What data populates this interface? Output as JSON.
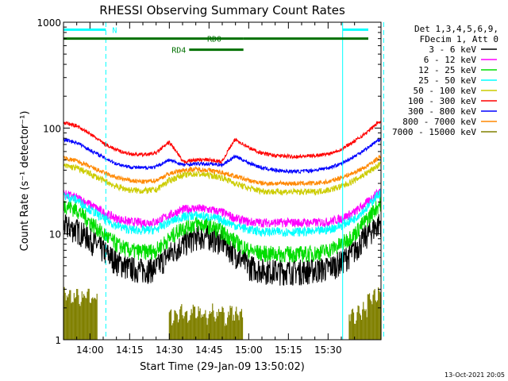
{
  "chart_data": {
    "type": "line",
    "title": "RHESSI Observing Summary Count Rates",
    "xlabel": "Start Time (29-Jan-09 13:50:02)",
    "ylabel": "Count Rate (s⁻¹ detector⁻¹)",
    "yscale": "log",
    "ylim": [
      1,
      1000
    ],
    "xlim_minutes": [
      0,
      120
    ],
    "x_ticks": [
      "14:00",
      "14:15",
      "14:30",
      "14:45",
      "15:00",
      "15:15",
      "15:30"
    ],
    "y_ticks": [
      "1",
      "10",
      "100",
      "1000"
    ],
    "grid": "none",
    "legend_position": "top-right",
    "legend_header": [
      "Det 1,3,4,5,6,9,",
      "FDecim 1, Att 0"
    ],
    "series": [
      {
        "name": "3 - 6 keV",
        "color": "#000000",
        "x_minutes": [
          0,
          5,
          10,
          15,
          20,
          25,
          30,
          35,
          40,
          45,
          50,
          55,
          60,
          65,
          70,
          75,
          80,
          85,
          90,
          95,
          100,
          105,
          110,
          115,
          120
        ],
        "values": [
          12,
          11,
          9,
          7,
          5.5,
          4.8,
          4.6,
          4.8,
          6.5,
          8,
          9.5,
          9.5,
          8.5,
          6.5,
          5,
          4.6,
          4.5,
          4.5,
          4.5,
          4.6,
          4.8,
          5.5,
          7,
          10,
          13
        ]
      },
      {
        "name": "6 - 12 keV",
        "color": "#ff00ff",
        "x_minutes": [
          0,
          5,
          10,
          15,
          20,
          25,
          30,
          35,
          40,
          45,
          50,
          55,
          60,
          65,
          70,
          75,
          80,
          85,
          90,
          95,
          100,
          105,
          110,
          115,
          120
        ],
        "values": [
          24,
          22,
          19,
          16,
          14,
          13,
          12.8,
          13,
          15,
          17,
          17.5,
          17,
          16,
          14,
          13,
          12.8,
          12.8,
          12.8,
          12.8,
          12.8,
          13,
          14,
          16,
          20,
          26
        ]
      },
      {
        "name": "12 - 25 keV",
        "color": "#00dd00",
        "x_minutes": [
          0,
          5,
          10,
          15,
          20,
          25,
          30,
          35,
          40,
          45,
          50,
          55,
          60,
          65,
          70,
          75,
          80,
          85,
          90,
          95,
          100,
          105,
          110,
          115,
          120
        ],
        "values": [
          19,
          17,
          13,
          10,
          8,
          7,
          6.8,
          7,
          9,
          11.5,
          12.5,
          12,
          10.5,
          8.5,
          7,
          6.6,
          6.5,
          6.5,
          6.5,
          6.6,
          7,
          8,
          10,
          14,
          20
        ]
      },
      {
        "name": "25 - 50 keV",
        "color": "#00ffff",
        "x_minutes": [
          0,
          5,
          10,
          15,
          20,
          25,
          30,
          35,
          40,
          45,
          50,
          55,
          60,
          65,
          70,
          75,
          80,
          85,
          90,
          95,
          100,
          105,
          110,
          115,
          120
        ],
        "values": [
          23,
          21,
          17,
          14,
          12,
          11,
          10.8,
          11,
          13,
          14.5,
          15,
          14.5,
          13.5,
          12,
          11,
          10.5,
          10.5,
          10.5,
          10.5,
          10.5,
          11,
          12,
          14,
          18,
          25
        ]
      },
      {
        "name": "50 - 100 keV",
        "color": "#cccc00",
        "x_minutes": [
          0,
          5,
          10,
          15,
          20,
          25,
          30,
          35,
          40,
          45,
          50,
          55,
          60,
          65,
          70,
          75,
          80,
          85,
          90,
          95,
          100,
          105,
          110,
          115,
          120
        ],
        "values": [
          44,
          42,
          37,
          32,
          28,
          26,
          25.5,
          26,
          32,
          36,
          37,
          36,
          34,
          30,
          27,
          25.5,
          25,
          25,
          25,
          25,
          26,
          28,
          32,
          38,
          46
        ]
      },
      {
        "name": "100 - 300 keV",
        "color": "#ff0000",
        "x_minutes": [
          0,
          5,
          10,
          15,
          20,
          25,
          30,
          35,
          40,
          45,
          50,
          55,
          60,
          65,
          70,
          75,
          80,
          85,
          90,
          95,
          100,
          105,
          110,
          115,
          120
        ],
        "values": [
          112,
          105,
          88,
          72,
          62,
          57,
          56,
          58,
          73,
          48,
          50,
          50,
          48,
          78,
          65,
          58,
          55,
          54,
          54,
          55,
          57,
          63,
          75,
          92,
          118
        ]
      },
      {
        "name": "300 - 800 keV",
        "color": "#0000ff",
        "x_minutes": [
          0,
          5,
          10,
          15,
          20,
          25,
          30,
          35,
          40,
          45,
          50,
          55,
          60,
          65,
          70,
          75,
          80,
          85,
          90,
          95,
          100,
          105,
          110,
          115,
          120
        ],
        "values": [
          78,
          73,
          62,
          53,
          46,
          43,
          42,
          43,
          50,
          45,
          46,
          46,
          45,
          54,
          47,
          42,
          40,
          39,
          39,
          40,
          42,
          46,
          54,
          65,
          80
        ]
      },
      {
        "name": "800 - 7000 keV",
        "color": "#ff8800",
        "x_minutes": [
          0,
          5,
          10,
          15,
          20,
          25,
          30,
          35,
          40,
          45,
          50,
          55,
          60,
          65,
          70,
          75,
          80,
          85,
          90,
          95,
          100,
          105,
          110,
          115,
          120
        ],
        "values": [
          52,
          49,
          43,
          38,
          34,
          32,
          31,
          32,
          37,
          40,
          41,
          40,
          38,
          35,
          32,
          30,
          30,
          30,
          30,
          30,
          31,
          34,
          38,
          44,
          54
        ]
      },
      {
        "name": "7000 - 15000 keV",
        "color": "#808000",
        "x_minutes": [
          0,
          1,
          2,
          3,
          4,
          5,
          6,
          7,
          8,
          9,
          10,
          11,
          12,
          40,
          41,
          42,
          43,
          44,
          45,
          46,
          47,
          48,
          49,
          50,
          51,
          52,
          53,
          54,
          55,
          56,
          57,
          58,
          59,
          60,
          61,
          62,
          63,
          64,
          65,
          66,
          67,
          108,
          109,
          110,
          111,
          112,
          113,
          114,
          115,
          116,
          117,
          118,
          119,
          120
        ],
        "values": [
          2.9,
          2.5,
          2.8,
          2.2,
          2.6,
          2.9,
          2.1,
          2.7,
          2.4,
          2.8,
          2.3,
          2.6,
          2.5,
          1.8,
          1.5,
          1.9,
          1.6,
          2,
          1.7,
          1.9,
          1.5,
          1.8,
          2,
          1.6,
          1.9,
          1.7,
          1.8,
          1.5,
          1.9,
          2,
          1.6,
          1.8,
          1.7,
          1.9,
          1.5,
          1.8,
          2,
          1.6,
          1.9,
          1.7,
          1.8,
          1.6,
          1.9,
          1.5,
          2,
          1.7,
          2.1,
          1.8,
          2.5,
          2.2,
          2.8,
          2.4,
          2.9,
          2.6
        ]
      }
    ],
    "state_bars": [
      {
        "label": "N",
        "color": "#00ffff",
        "y_level": 850,
        "segments_minutes": [
          [
            -1,
            16
          ],
          [
            105.5,
            122
          ]
        ]
      },
      {
        "label": "RD0",
        "color": "#007000",
        "y_level": 700,
        "segments_minutes": [
          [
            -1,
            68
          ],
          [
            68,
            122
          ]
        ]
      },
      {
        "label": "RD4",
        "color": "#007000",
        "y_level": 550,
        "segments_minutes": [
          [
            47.5,
            68
          ]
        ]
      }
    ],
    "vertical_lines": [
      {
        "minute": 0,
        "color": "#00ffff",
        "style": "solid"
      },
      {
        "minute": 16,
        "color": "#00ffff",
        "style": "dashed"
      },
      {
        "minute": 105.5,
        "color": "#00ffff",
        "style": "solid"
      },
      {
        "minute": 121,
        "color": "#00ffff",
        "style": "dashed"
      }
    ]
  },
  "footer_timestamp": "13-Oct-2021 20:05"
}
